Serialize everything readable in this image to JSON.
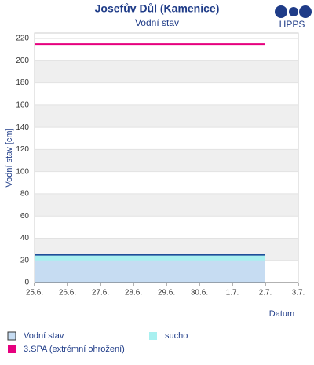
{
  "chart_data": {
    "type": "line",
    "title": "Josefův Důl (Kamenice)",
    "subtitle": "Vodní stav",
    "logo": "HPPS",
    "x_label": "Datum",
    "y_label": "Vodní stav [cm]",
    "categories": [
      "25.6.",
      "26.6.",
      "27.6.",
      "28.6.",
      "29.6.",
      "30.6.",
      "1.7.",
      "2.7.",
      "3.7."
    ],
    "series": [
      {
        "name": "Vodní stav",
        "color": "#1f4e99",
        "fill": "#c6dcf2",
        "values": [
          25,
          25,
          25,
          25,
          25,
          25,
          25,
          25,
          null
        ]
      },
      {
        "name": "sucho",
        "color": "#a8f0f0",
        "values": [
          20,
          20,
          20,
          20,
          20,
          20,
          20,
          20,
          null
        ]
      },
      {
        "name": "3.SPA (extrémní ohrožení)",
        "color": "#e6007e",
        "values": [
          215,
          215,
          215,
          215,
          215,
          215,
          215,
          215,
          null
        ]
      }
    ],
    "ylim": [
      0,
      225
    ],
    "yticks": [
      0,
      20,
      40,
      60,
      80,
      100,
      120,
      140,
      160,
      180,
      200,
      220
    ],
    "grid": true
  }
}
